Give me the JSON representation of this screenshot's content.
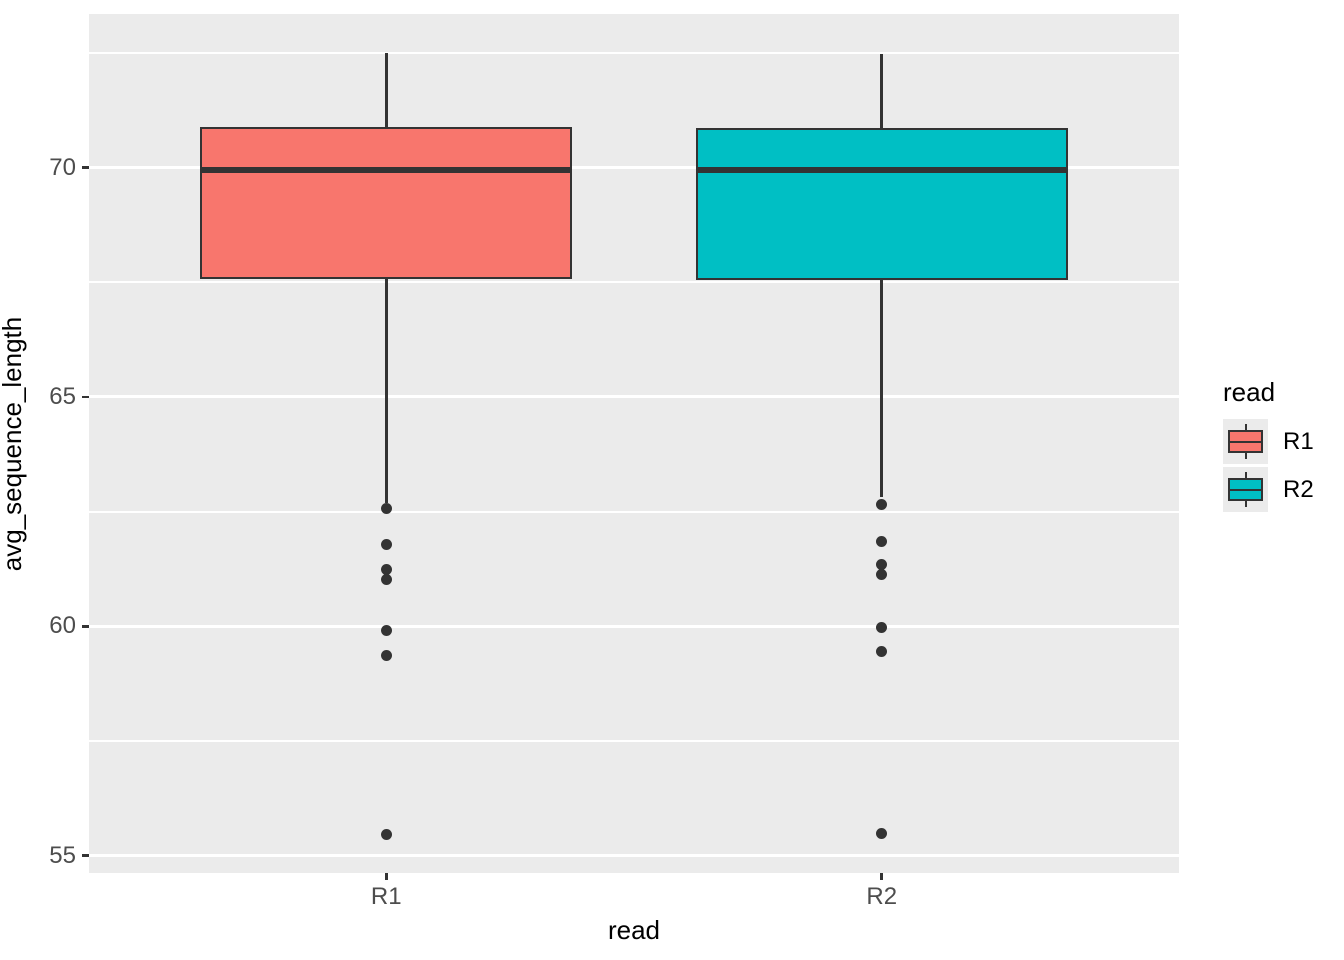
{
  "chart_data": {
    "type": "boxplot",
    "title": "",
    "xlabel": "read",
    "ylabel": "avg_sequence_length",
    "categories": [
      "R1",
      "R2"
    ],
    "ylim": [
      54.62,
      73.35
    ],
    "y_major_ticks": [
      55,
      60,
      65,
      70
    ],
    "y_minor_ticks": [
      57.5,
      62.5,
      67.5,
      72.5
    ],
    "grid": true,
    "panel_background": "#EBEBEB",
    "gridline_color": "#FFFFFF",
    "box_outline_color": "#333333",
    "tick_text_color": "#4D4D4D",
    "series": [
      {
        "name": "R1",
        "color": "#F8766D",
        "whisker_high": 72.5,
        "q3": 70.88,
        "median": 69.95,
        "q1": 67.57,
        "whisker_low": 62.68,
        "outliers": [
          62.56,
          61.79,
          61.23,
          61.03,
          59.9,
          59.37,
          55.46
        ]
      },
      {
        "name": "R2",
        "color": "#00BFC4",
        "whisker_high": 72.47,
        "q3": 70.86,
        "median": 69.95,
        "q1": 67.56,
        "whisker_low": 62.82,
        "outliers": [
          62.65,
          61.84,
          61.34,
          61.12,
          59.97,
          59.44,
          55.48
        ]
      }
    ],
    "legend": {
      "title": "read",
      "position": "right",
      "entries": [
        {
          "label": "R1",
          "color": "#F8766D"
        },
        {
          "label": "R2",
          "color": "#00BFC4"
        }
      ]
    }
  }
}
